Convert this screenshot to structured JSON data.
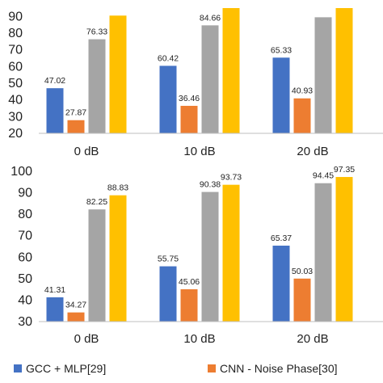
{
  "chart_data": [
    {
      "type": "bar",
      "categories": [
        "0 dB",
        "10 dB",
        "20 dB"
      ],
      "yticks": [
        "20",
        "30",
        "40",
        "50",
        "60",
        "70",
        "80",
        "90"
      ],
      "ylim": [
        20,
        95
      ],
      "series": [
        {
          "name": "GCC + MLP[29]",
          "values": [
            47.02,
            60.42,
            65.33
          ],
          "labels": [
            "47.02",
            "60.42",
            "65.33"
          ],
          "color": "#4472C4"
        },
        {
          "name": "CNN - Noise Phase[30]",
          "values": [
            27.87,
            36.46,
            40.93
          ],
          "labels": [
            "27.87",
            "36.46",
            "40.93"
          ],
          "color": "#ED7D31"
        },
        {
          "values": [
            76.33,
            84.66,
            89.5
          ],
          "labels": [
            "76.33",
            "84.66",
            ""
          ],
          "color": "#A5A5A5"
        },
        {
          "values": [
            90.5,
            95,
            95
          ],
          "labels": [
            "",
            "",
            ""
          ],
          "color": "#FFC000"
        }
      ]
    },
    {
      "type": "bar",
      "categories": [
        "0 dB",
        "10 dB",
        "20 dB"
      ],
      "yticks": [
        "30",
        "40",
        "50",
        "60",
        "70",
        "80",
        "90",
        "100"
      ],
      "ylim": [
        30,
        100
      ],
      "series": [
        {
          "name": "GCC + MLP[29]",
          "values": [
            41.31,
            55.75,
            65.37
          ],
          "labels": [
            "41.31",
            "55.75",
            "65.37"
          ],
          "color": "#4472C4"
        },
        {
          "name": "CNN - Noise Phase[30]",
          "values": [
            34.27,
            45.06,
            50.03
          ],
          "labels": [
            "34.27",
            "45.06",
            "50.03"
          ],
          "color": "#ED7D31"
        },
        {
          "values": [
            82.25,
            90.38,
            94.45
          ],
          "labels": [
            "82.25",
            "90.38",
            "94.45"
          ],
          "color": "#A5A5A5"
        },
        {
          "values": [
            88.83,
            93.73,
            97.35
          ],
          "labels": [
            "88.83",
            "93.73",
            "97.35"
          ],
          "color": "#FFC000"
        }
      ]
    }
  ],
  "legend": [
    {
      "label": "GCC + MLP[29]",
      "color": "#4472C4"
    },
    {
      "label": "CNN - Noise Phase[30]",
      "color": "#ED7D31"
    }
  ]
}
